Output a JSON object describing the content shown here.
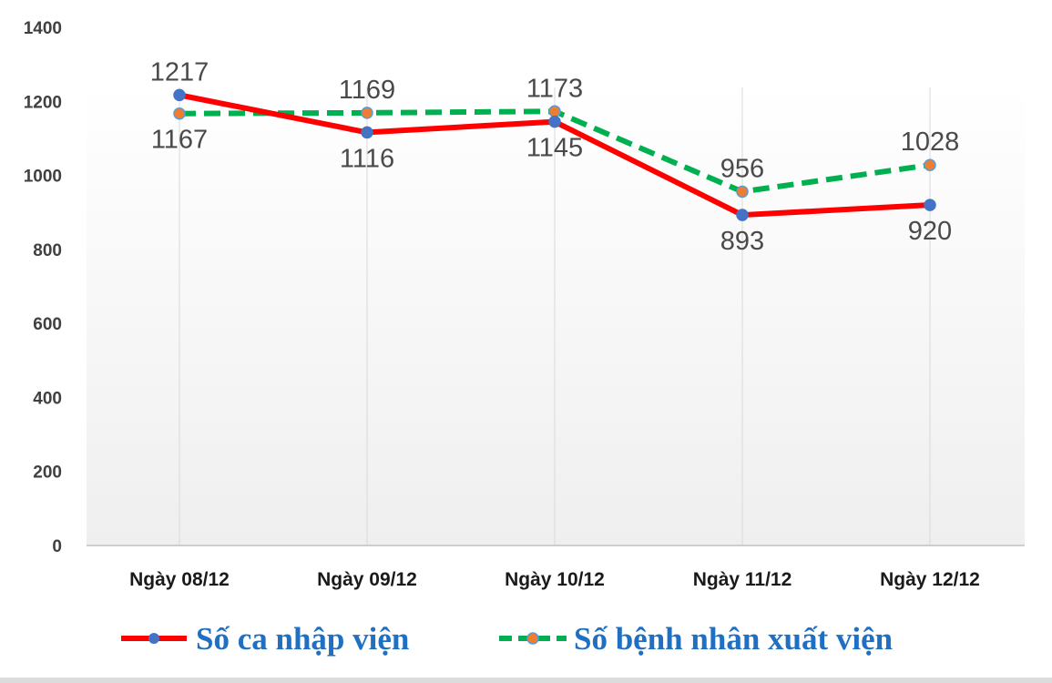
{
  "chart_data": {
    "type": "line",
    "categories": [
      "Ngày 08/12",
      "Ngày 09/12",
      "Ngày 10/12",
      "Ngày 11/12",
      "Ngày 12/12"
    ],
    "series": [
      {
        "name": "Số ca nhập viện",
        "values": [
          1217,
          1116,
          1145,
          893,
          920
        ],
        "color": "#ff0000",
        "marker_color": "#4472c4",
        "line_style": "solid"
      },
      {
        "name": "Số bệnh nhân xuất viện",
        "values": [
          1167,
          1169,
          1173,
          956,
          1028
        ],
        "color": "#00b050",
        "marker_color": "#ed7d31",
        "line_style": "dashed"
      }
    ],
    "y_ticks": [
      "0",
      "200",
      "400",
      "600",
      "800",
      "1000",
      "1200",
      "1400"
    ],
    "ylim": [
      0,
      1400
    ],
    "grid": "vertical",
    "legend_position": "bottom",
    "legend_text_color": "#1f6fc2"
  }
}
